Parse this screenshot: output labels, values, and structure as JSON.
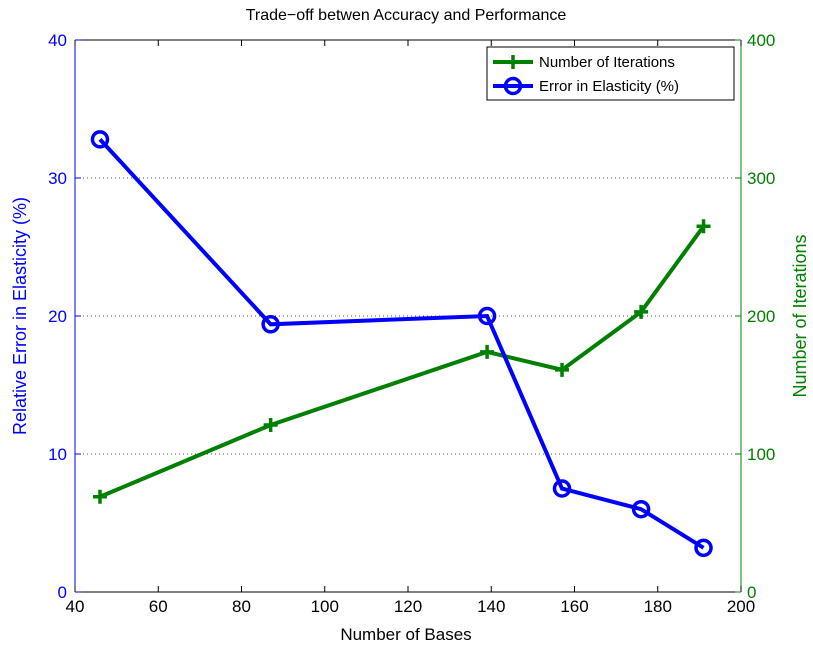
{
  "chart_data": {
    "type": "line",
    "title": "Trade−off betwen Accuracy and Performance",
    "xlabel": "Number of Bases",
    "ylabel_left": "Relative Error in Elasticity (%)",
    "ylabel_right": "Number of Iterations",
    "xlim": [
      40,
      200
    ],
    "ylim_left": [
      0,
      40
    ],
    "ylim_right": [
      0,
      400
    ],
    "x_ticks": [
      40,
      60,
      80,
      100,
      120,
      140,
      160,
      180,
      200
    ],
    "y_left_ticks": [
      0,
      10,
      20,
      30,
      40
    ],
    "y_right_ticks": [
      0,
      100,
      200,
      300,
      400
    ],
    "grid": "horizontal dotted",
    "legend_position": "top-right",
    "colors": {
      "left_axis": "#0000ff",
      "right_axis": "#008000"
    },
    "series": [
      {
        "name": "Number of Iterations",
        "axis": "right",
        "marker": "plus",
        "color": "#008000",
        "x": [
          46,
          87,
          139,
          157,
          176,
          191
        ],
        "y": [
          69,
          121,
          174,
          161,
          203,
          265
        ]
      },
      {
        "name": "Error in Elasticity (%)",
        "axis": "left",
        "marker": "circle",
        "color": "#0000ff",
        "x": [
          46,
          87,
          139,
          157,
          176,
          191
        ],
        "y": [
          32.8,
          19.4,
          20.0,
          7.5,
          6.0,
          3.2
        ]
      }
    ]
  }
}
